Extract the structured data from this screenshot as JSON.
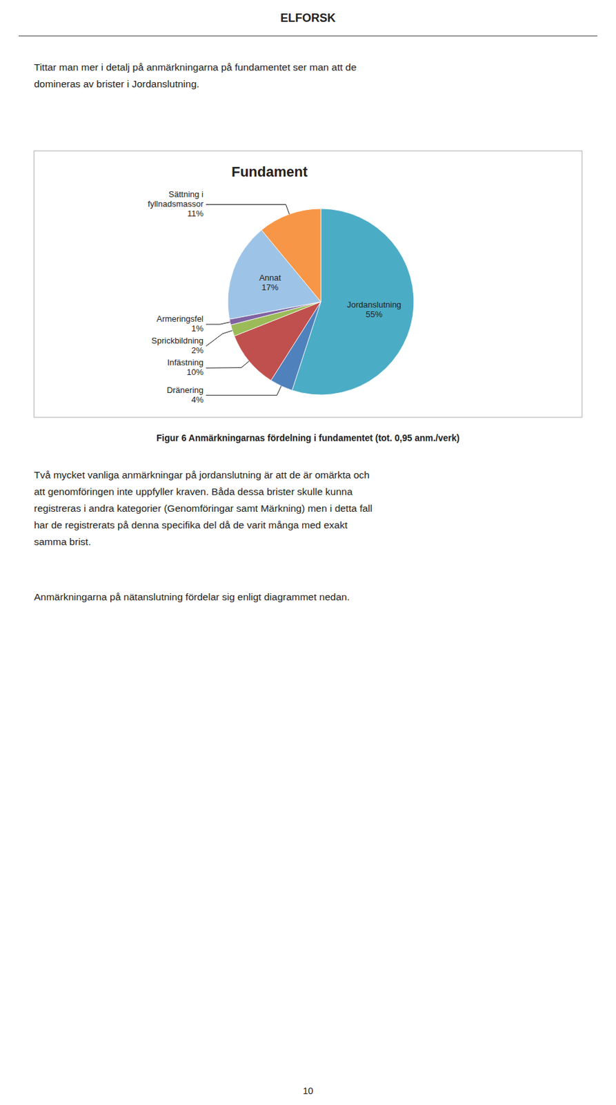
{
  "heading": "ELFORSK",
  "intro": "Tittar man mer i detalj på anmärkningarna på fundamentet ser man att de\ndomineras av brister i Jordanslutning.",
  "caption": "Figur 6 Anmärkningarnas fördelning i fundamentet (tot. 0,95 anm./verk)",
  "body": [
    "Två mycket vanliga anmärkningar på jordanslutning är att de är omärkta och\natt genomföringen inte uppfyller kraven. Båda dessa brister skulle kunna\nregistreras i andra kategorier (Genomföringar samt Märkning) men i detta fall\nhar de registrerats på denna specifika del då de varit många med exakt\nsamma brist.",
    "Anmärkningarna på nätanslutning fördelar sig enligt diagrammet nedan."
  ],
  "page_number": "10",
  "chart_data": {
    "type": "pie",
    "title": "Fundament",
    "categories": [
      "Jordanslutning",
      "Dränering",
      "Infästning",
      "Sprickbildning",
      "Armeringsfel",
      "Annat",
      "Sättning i\nfyllnadsmassor"
    ],
    "values": [
      55,
      4,
      10,
      2,
      1,
      17,
      11
    ],
    "value_labels": [
      "55%",
      "4%",
      "10%",
      "2%",
      "1%",
      "17%",
      "11%"
    ],
    "colors": [
      "#4bacc6",
      "#4f81bd",
      "#c0504d",
      "#9bbb59",
      "#8064a2",
      "#9dc3e6",
      "#f79646"
    ],
    "data_labels": true
  }
}
